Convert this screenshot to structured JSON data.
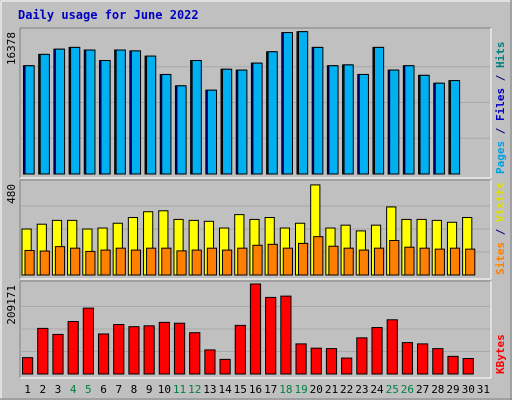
{
  "chart_data": {
    "type": "bar",
    "title": "Daily usage for June 2022",
    "categories": [
      "1",
      "2",
      "3",
      "4",
      "5",
      "6",
      "7",
      "8",
      "9",
      "10",
      "11",
      "12",
      "13",
      "14",
      "15",
      "16",
      "17",
      "18",
      "19",
      "20",
      "21",
      "22",
      "23",
      "24",
      "25",
      "26",
      "27",
      "28",
      "29",
      "30",
      "31"
    ],
    "weekend_days": [
      "4",
      "5",
      "11",
      "12",
      "18",
      "19",
      "25",
      "26"
    ],
    "panels": [
      {
        "name": "top",
        "ymax_label": "16378",
        "ymax": 16378,
        "ylabel_parts": [
          {
            "text": "Pages",
            "color": "#00a0e0"
          },
          {
            "text": " / ",
            "color": "#000080"
          },
          {
            "text": "Files",
            "color": "#0000c0"
          },
          {
            "text": " / ",
            "color": "#000080"
          },
          {
            "text": "Hits",
            "color": "#008080"
          }
        ],
        "series": [
          {
            "name": "Hits",
            "color": "#008080",
            "values": [
              0,
              0,
              0,
              0,
              0,
              0,
              0,
              0,
              0,
              0,
              0,
              0,
              0,
              0,
              0,
              0,
              0,
              0,
              0,
              0,
              0,
              0,
              0,
              0,
              0,
              0,
              0,
              0,
              0,
              0,
              0
            ]
          },
          {
            "name": "Files",
            "color": "#0000c0",
            "values": [
              12400,
              13700,
              14300,
              14500,
              14200,
              13000,
              14200,
              14100,
              13500,
              11400,
              10100,
              13000,
              9600,
              12000,
              11900,
              12700,
              14000,
              16200,
              16300,
              14500,
              12400,
              12500,
              11400,
              14500,
              11900,
              12400,
              11300,
              10400,
              10700,
              0,
              0
            ]
          },
          {
            "name": "Pages",
            "color": "#00b0f0",
            "values": [
              12400,
              13700,
              14300,
              14500,
              14200,
              13000,
              14200,
              14100,
              13500,
              11400,
              10100,
              13000,
              9600,
              12000,
              11900,
              12700,
              14000,
              16200,
              16300,
              14500,
              12400,
              12500,
              11400,
              14500,
              11900,
              12400,
              11300,
              10400,
              10700,
              0,
              0
            ]
          }
        ]
      },
      {
        "name": "middle",
        "ymax_label": "480",
        "ymax": 480,
        "ylabel_parts": [
          {
            "text": "Sites",
            "color": "#ff8000"
          },
          {
            "text": " / ",
            "color": "#000080"
          },
          {
            "text": "Visits",
            "color": "#e0e000"
          }
        ],
        "series": [
          {
            "name": "Visits",
            "color": "#ffff00",
            "values": [
              240,
              265,
              285,
              285,
              240,
              245,
              270,
              300,
              330,
              335,
              290,
              285,
              280,
              245,
              315,
              290,
              300,
              245,
              270,
              470,
              245,
              260,
              230,
              260,
              355,
              290,
              290,
              285,
              275,
              300,
              0
            ]
          },
          {
            "name": "Sites",
            "color": "#ff8000",
            "values": [
              128,
              125,
              148,
              140,
              123,
              130,
              140,
              130,
              140,
              140,
              126,
              130,
              140,
              130,
              140,
              155,
              160,
              140,
              165,
              200,
              150,
              140,
              130,
              140,
              180,
              145,
              140,
              135,
              140,
              135,
              0
            ]
          }
        ]
      },
      {
        "name": "bottom",
        "ymax_label": "209171",
        "ymax": 209171,
        "ylabel_parts": [
          {
            "text": "KBytes",
            "color": "#ff0000"
          }
        ],
        "series": [
          {
            "name": "KBytes",
            "color": "#ff0000",
            "values": [
              38000,
              106000,
              92000,
              122000,
              153000,
              93000,
              115000,
              110000,
              112000,
              120000,
              118000,
              96000,
              56000,
              34000,
              113000,
              211000,
              178000,
              181000,
              70000,
              60000,
              59000,
              37000,
              84000,
              108000,
              126000,
              73000,
              70000,
              59000,
              41000,
              36000,
              0
            ]
          }
        ]
      }
    ]
  }
}
